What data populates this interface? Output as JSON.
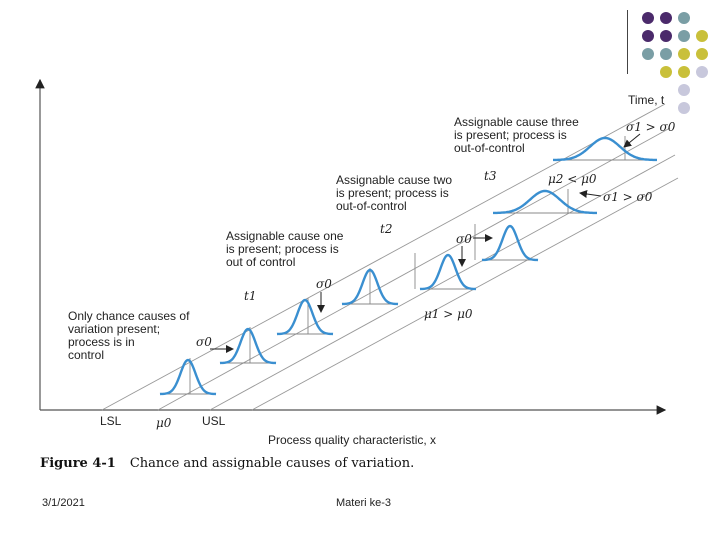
{
  "colors": {
    "curve": "#3a8fd0",
    "deco_purple": "#4b2a6b",
    "deco_teal": "#7a9ea5",
    "deco_olive": "#c9c03a",
    "deco_lavender": "#c8c8dc"
  },
  "diagram": {
    "time_axis": "Time, t",
    "x_axis": "Process quality characteristic, x",
    "lsl": "LSL",
    "usl": "USL",
    "mu0": "μ0",
    "t1": "t1",
    "t2": "t2",
    "t3": "t3",
    "sigma0_a": "σ0",
    "sigma0_b": "σ0",
    "sigma0_c": "σ0",
    "mu1_gt_mu0": "μ1 > μ0",
    "mu2_lt_mu0": "μ2 < μ0",
    "sigma1_gt_sigma0_a": "σ1 > σ0",
    "sigma1_gt_sigma0_b": "σ1 > σ0",
    "chance": [
      "Only chance causes of",
      "variation present;",
      "process is in",
      "control"
    ],
    "cause_one": [
      "Assignable cause one",
      "is present; process is",
      "out of control"
    ],
    "cause_two": [
      "Assignable cause two",
      "is present; process is",
      "out-of-control"
    ],
    "cause_three": [
      "Assignable cause three",
      "is present; process is",
      "out-of-control"
    ]
  },
  "caption": {
    "figure": "Figure 4-1",
    "text": "Chance and assignable causes of variation."
  },
  "footer": {
    "date": "3/1/2021",
    "title": "Materi ke-3"
  }
}
